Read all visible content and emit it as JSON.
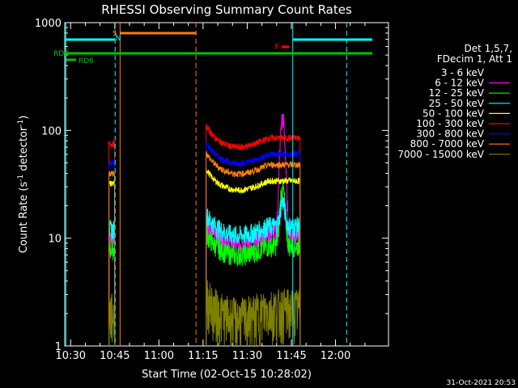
{
  "chart_data": {
    "type": "line",
    "title": "RHESSI Observing Summary Count Rates",
    "xlabel": "Start Time (02-Oct-15 10:28:02)",
    "ylabel_main": "Count Rate (s",
    "ylabel_sup1": "-1",
    "ylabel_mid": " detector",
    "ylabel_sup2": "-1",
    "ylabel_end": ")",
    "y_scale": "log",
    "ylim": [
      1,
      1000
    ],
    "xlim_minutes": [
      10.4667,
      12.3
    ],
    "x_ticks": [
      {
        "label": "10:30",
        "value": 10.5
      },
      {
        "label": "10:45",
        "value": 10.75
      },
      {
        "label": "11:00",
        "value": 11.0
      },
      {
        "label": "11:15",
        "value": 11.25
      },
      {
        "label": "11:30",
        "value": 11.5
      },
      {
        "label": "11:45",
        "value": 11.75
      },
      {
        "label": "12:00",
        "value": 12.0
      }
    ],
    "y_ticks": [
      {
        "label": "1",
        "value": 1
      },
      {
        "label": "10",
        "value": 10
      },
      {
        "label": "100",
        "value": 100
      },
      {
        "label": "1000",
        "value": 1000
      }
    ],
    "legend_header": [
      "Det 1,5,7,",
      "FDecim 1, Att 1"
    ],
    "legend_placement": "right",
    "series": [
      {
        "name": "3 - 6 keV",
        "color": "#000000",
        "seg1": 32,
        "seg2": 35,
        "peak": 45
      },
      {
        "name": "6 - 12 keV",
        "color": "#ff00ff",
        "seg1": 10,
        "seg2": 11,
        "peak": 130
      },
      {
        "name": "12 - 25 keV",
        "color": "#00ff00",
        "seg1": 8,
        "seg2": 8.5,
        "peak": 30
      },
      {
        "name": "25 - 50 keV",
        "color": "#00ffff",
        "seg1": 12,
        "seg2": 13,
        "peak": 22
      },
      {
        "name": "50 - 100 keV",
        "color": "#ffff00",
        "seg1": 32,
        "seg2": 34,
        "peak": 34
      },
      {
        "name": "100 - 300 keV",
        "color": "#ff0000",
        "seg1": 75,
        "seg2": 85,
        "peak": 85
      },
      {
        "name": "300 - 800 keV",
        "color": "#0000ff",
        "seg1": 50,
        "seg2": 60,
        "peak": 60
      },
      {
        "name": "800 - 7000 keV",
        "color": "#ff8000",
        "seg1": 40,
        "seg2": 48,
        "peak": 48
      },
      {
        "name": "7000 - 15000 keV",
        "color": "#808000",
        "seg1": 2,
        "seg2": 2.2,
        "peak": 2.2
      }
    ],
    "flag_labels": [
      {
        "text": "S",
        "color": "#ff8000"
      },
      {
        "text": "N",
        "color": "#00ffff"
      },
      {
        "text": "F",
        "color": "#ff0000"
      },
      {
        "text": "RDB",
        "color": "#00c000"
      },
      {
        "text": "RD6",
        "color": "#00c000"
      }
    ],
    "footer_timestamp": "31-Oct-2021 20:53"
  }
}
